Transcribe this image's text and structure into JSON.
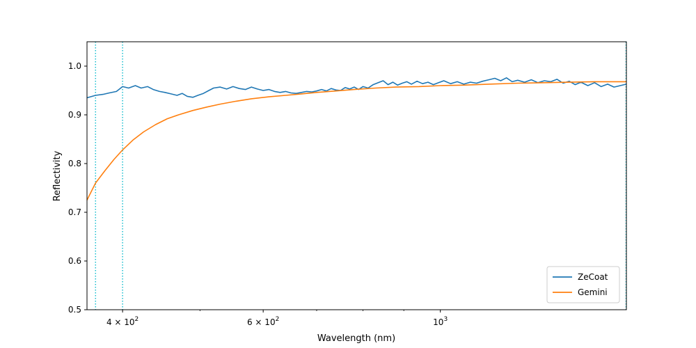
{
  "chart_data": {
    "type": "line",
    "xlabel": "Wavelength (nm)",
    "ylabel": "Reflectivity",
    "xscale": "log",
    "xlim": [
      361,
      1710
    ],
    "ylim": [
      0.5,
      1.05
    ],
    "x_major_ticks": [
      {
        "value": 400,
        "base": "4",
        "mult": "× 10",
        "exp": "2"
      },
      {
        "value": 600,
        "base": "6",
        "mult": "× 10",
        "exp": "2"
      },
      {
        "value": 1000,
        "base": "10",
        "mult": "",
        "exp": "3"
      }
    ],
    "x_minor_ticks": [
      500,
      700,
      800,
      900
    ],
    "y_ticks": [
      {
        "value": 0.5,
        "label": "0.5"
      },
      {
        "value": 0.6,
        "label": "0.6"
      },
      {
        "value": 0.7,
        "label": "0.7"
      },
      {
        "value": 0.8,
        "label": "0.8"
      },
      {
        "value": 0.9,
        "label": "0.9"
      },
      {
        "value": 1.0,
        "label": "1.0"
      }
    ],
    "vlines": [
      {
        "x": 370,
        "color": "#17becf",
        "style": "dotted"
      },
      {
        "x": 400,
        "color": "#17becf",
        "style": "dotted"
      },
      {
        "x": 1710,
        "color": "#17becf",
        "style": "dotted"
      }
    ],
    "legend": {
      "position": "lower-right"
    },
    "series": [
      {
        "name": "ZeCoat",
        "color": "#1f77b4",
        "x": [
          361,
          370,
          378,
          385,
          393,
          400,
          407,
          415,
          422,
          430,
          437,
          445,
          452,
          460,
          468,
          475,
          482,
          490,
          497,
          505,
          513,
          520,
          530,
          540,
          550,
          560,
          570,
          580,
          590,
          600,
          610,
          620,
          630,
          640,
          650,
          660,
          670,
          680,
          690,
          700,
          710,
          720,
          730,
          740,
          750,
          760,
          770,
          780,
          790,
          800,
          812,
          824,
          836,
          848,
          860,
          872,
          884,
          896,
          908,
          920,
          935,
          950,
          965,
          980,
          995,
          1010,
          1030,
          1050,
          1070,
          1090,
          1110,
          1130,
          1150,
          1170,
          1190,
          1210,
          1230,
          1250,
          1275,
          1300,
          1325,
          1350,
          1375,
          1400,
          1425,
          1450,
          1475,
          1500,
          1530,
          1560,
          1590,
          1620,
          1650,
          1680,
          1710
        ],
        "y": [
          0.935,
          0.94,
          0.942,
          0.945,
          0.948,
          0.958,
          0.955,
          0.96,
          0.955,
          0.958,
          0.952,
          0.948,
          0.946,
          0.943,
          0.94,
          0.944,
          0.938,
          0.936,
          0.94,
          0.944,
          0.95,
          0.955,
          0.957,
          0.953,
          0.958,
          0.954,
          0.952,
          0.957,
          0.953,
          0.95,
          0.952,
          0.948,
          0.946,
          0.948,
          0.945,
          0.944,
          0.946,
          0.948,
          0.947,
          0.949,
          0.952,
          0.949,
          0.954,
          0.951,
          0.95,
          0.956,
          0.953,
          0.957,
          0.952,
          0.958,
          0.955,
          0.962,
          0.966,
          0.97,
          0.962,
          0.967,
          0.961,
          0.965,
          0.968,
          0.963,
          0.969,
          0.964,
          0.967,
          0.962,
          0.966,
          0.97,
          0.964,
          0.968,
          0.963,
          0.967,
          0.965,
          0.969,
          0.972,
          0.975,
          0.97,
          0.976,
          0.968,
          0.971,
          0.967,
          0.972,
          0.966,
          0.97,
          0.968,
          0.973,
          0.965,
          0.969,
          0.962,
          0.967,
          0.96,
          0.966,
          0.958,
          0.963,
          0.957,
          0.96,
          0.963
        ]
      },
      {
        "name": "Gemini",
        "color": "#ff7f0e",
        "x": [
          361,
          370,
          380,
          390,
          400,
          412,
          425,
          440,
          455,
          470,
          490,
          510,
          530,
          555,
          580,
          610,
          640,
          670,
          700,
          740,
          780,
          830,
          880,
          940,
          1000,
          1070,
          1150,
          1250,
          1350,
          1450,
          1560,
          1710
        ],
        "y": [
          0.725,
          0.76,
          0.785,
          0.808,
          0.828,
          0.848,
          0.865,
          0.88,
          0.892,
          0.9,
          0.909,
          0.916,
          0.922,
          0.928,
          0.933,
          0.937,
          0.94,
          0.943,
          0.946,
          0.949,
          0.952,
          0.955,
          0.957,
          0.958,
          0.96,
          0.961,
          0.963,
          0.965,
          0.966,
          0.967,
          0.968,
          0.968
        ]
      }
    ]
  }
}
